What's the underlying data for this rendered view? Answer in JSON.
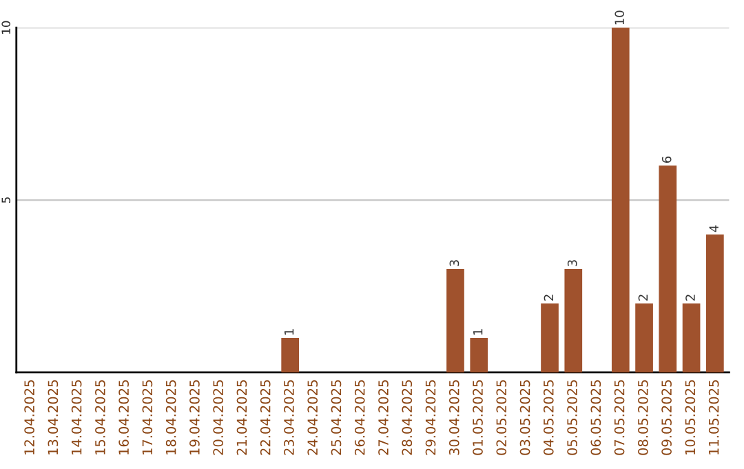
{
  "chart_data": {
    "type": "bar",
    "categories": [
      "12.04.2025",
      "13.04.2025",
      "14.04.2025",
      "15.04.2025",
      "16.04.2025",
      "17.04.2025",
      "18.04.2025",
      "19.04.2025",
      "20.04.2025",
      "21.04.2025",
      "22.04.2025",
      "23.04.2025",
      "24.04.2025",
      "25.04.2025",
      "26.04.2025",
      "27.04.2025",
      "28.04.2025",
      "29.04.2025",
      "30.04.2025",
      "01.05.2025",
      "02.05.2025",
      "03.05.2025",
      "04.05.2025",
      "05.05.2025",
      "06.05.2025",
      "07.05.2025",
      "08.05.2025",
      "09.05.2025",
      "10.05.2025",
      "11.05.2025"
    ],
    "values": [
      0,
      0,
      0,
      0,
      0,
      0,
      0,
      0,
      0,
      0,
      0,
      1,
      0,
      0,
      0,
      0,
      0,
      0,
      3,
      1,
      0,
      0,
      2,
      3,
      0,
      10,
      2,
      6,
      2,
      4
    ],
    "value_labels": [
      null,
      null,
      null,
      null,
      null,
      null,
      null,
      null,
      null,
      null,
      null,
      "1",
      null,
      null,
      null,
      null,
      null,
      null,
      "3",
      "1",
      null,
      null,
      "2",
      "3",
      null,
      "10",
      "2",
      "6",
      "2",
      "4"
    ],
    "color": "#a0522d",
    "ylim": [
      0,
      10
    ],
    "yticks": [
      5,
      10
    ],
    "grid": "y"
  }
}
